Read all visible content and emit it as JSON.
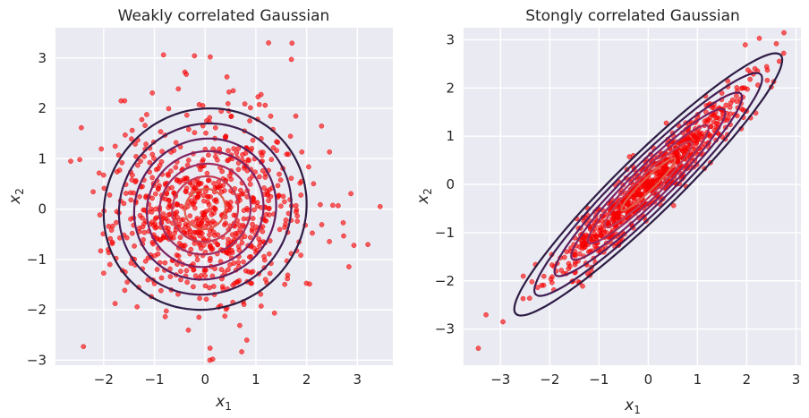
{
  "chart_data": [
    {
      "type": "scatter",
      "title": "Weakly correlated Gaussian",
      "xlabel": "x",
      "xlabel_sub": "1",
      "ylabel": "x",
      "ylabel_sub": "2",
      "xlim": [
        -2.95,
        3.7
      ],
      "ylim": [
        -3.1,
        3.6
      ],
      "xticks": [
        -2,
        -1,
        0,
        1,
        2,
        3
      ],
      "yticks": [
        -3,
        -2,
        -1,
        0,
        1,
        2,
        3
      ],
      "xtick_labels": [
        "−2",
        "−1",
        "0",
        "1",
        "2",
        "3"
      ],
      "ytick_labels": [
        "−3",
        "−2",
        "−1",
        "0",
        "1",
        "2",
        "3"
      ],
      "grid": true,
      "point_color": "#ff0000",
      "n_points": 800,
      "mean": [
        0,
        0
      ],
      "std": [
        0.95,
        0.95
      ],
      "correlation": 0.05,
      "seed": 7,
      "outliers": [
        [
          1.25,
          3.3
        ],
        [
          1.7,
          2.97
        ],
        [
          -2.65,
          0.95
        ],
        [
          -2.4,
          -2.73
        ],
        [
          3.45,
          0.05
        ],
        [
          -0.4,
          2.72
        ],
        [
          0.1,
          3.02
        ]
      ],
      "contours": [
        {
          "level": 2.0,
          "color": "#2d1c44"
        },
        {
          "level": 1.7,
          "color": "#3e1d52"
        },
        {
          "level": 1.4,
          "color": "#5c1e5e"
        },
        {
          "level": 1.15,
          "color": "#7d2263"
        },
        {
          "level": 0.9,
          "color": "#9c2c61"
        },
        {
          "level": 0.65,
          "color": "#c23b58"
        },
        {
          "level": 0.4,
          "color": "#e05b4c"
        }
      ]
    },
    {
      "type": "scatter",
      "title": "Stongly correlated Gaussian",
      "xlabel": "x",
      "xlabel_sub": "1",
      "ylabel": "x",
      "ylabel_sub": "2",
      "xlim": [
        -3.75,
        3.1
      ],
      "ylim": [
        -3.75,
        3.25
      ],
      "xticks": [
        -3,
        -2,
        -1,
        0,
        1,
        2,
        3
      ],
      "yticks": [
        -3,
        -2,
        -1,
        0,
        1,
        2,
        3
      ],
      "xtick_labels": [
        "−3",
        "−2",
        "−1",
        "0",
        "1",
        "2",
        "3"
      ],
      "ytick_labels": [
        "−3",
        "−2",
        "−1",
        "0",
        "1",
        "2",
        "3"
      ],
      "grid": true,
      "point_color": "#ff0000",
      "n_points": 800,
      "mean": [
        0,
        0
      ],
      "std": [
        0.95,
        0.95
      ],
      "correlation": 0.95,
      "seed": 11,
      "outliers": [
        [
          -3.45,
          -3.4
        ],
        [
          2.6,
          2.92
        ],
        [
          2.75,
          2.72
        ],
        [
          -2.95,
          -2.85
        ]
      ],
      "contours": [
        {
          "level": 2.0,
          "color": "#2d1c44"
        },
        {
          "level": 1.7,
          "color": "#3e1d52"
        },
        {
          "level": 1.4,
          "color": "#5c1e5e"
        },
        {
          "level": 1.15,
          "color": "#7d2263"
        },
        {
          "level": 0.9,
          "color": "#9c2c61"
        },
        {
          "level": 0.65,
          "color": "#c23b58"
        },
        {
          "level": 0.4,
          "color": "#e05b4c"
        }
      ]
    }
  ]
}
